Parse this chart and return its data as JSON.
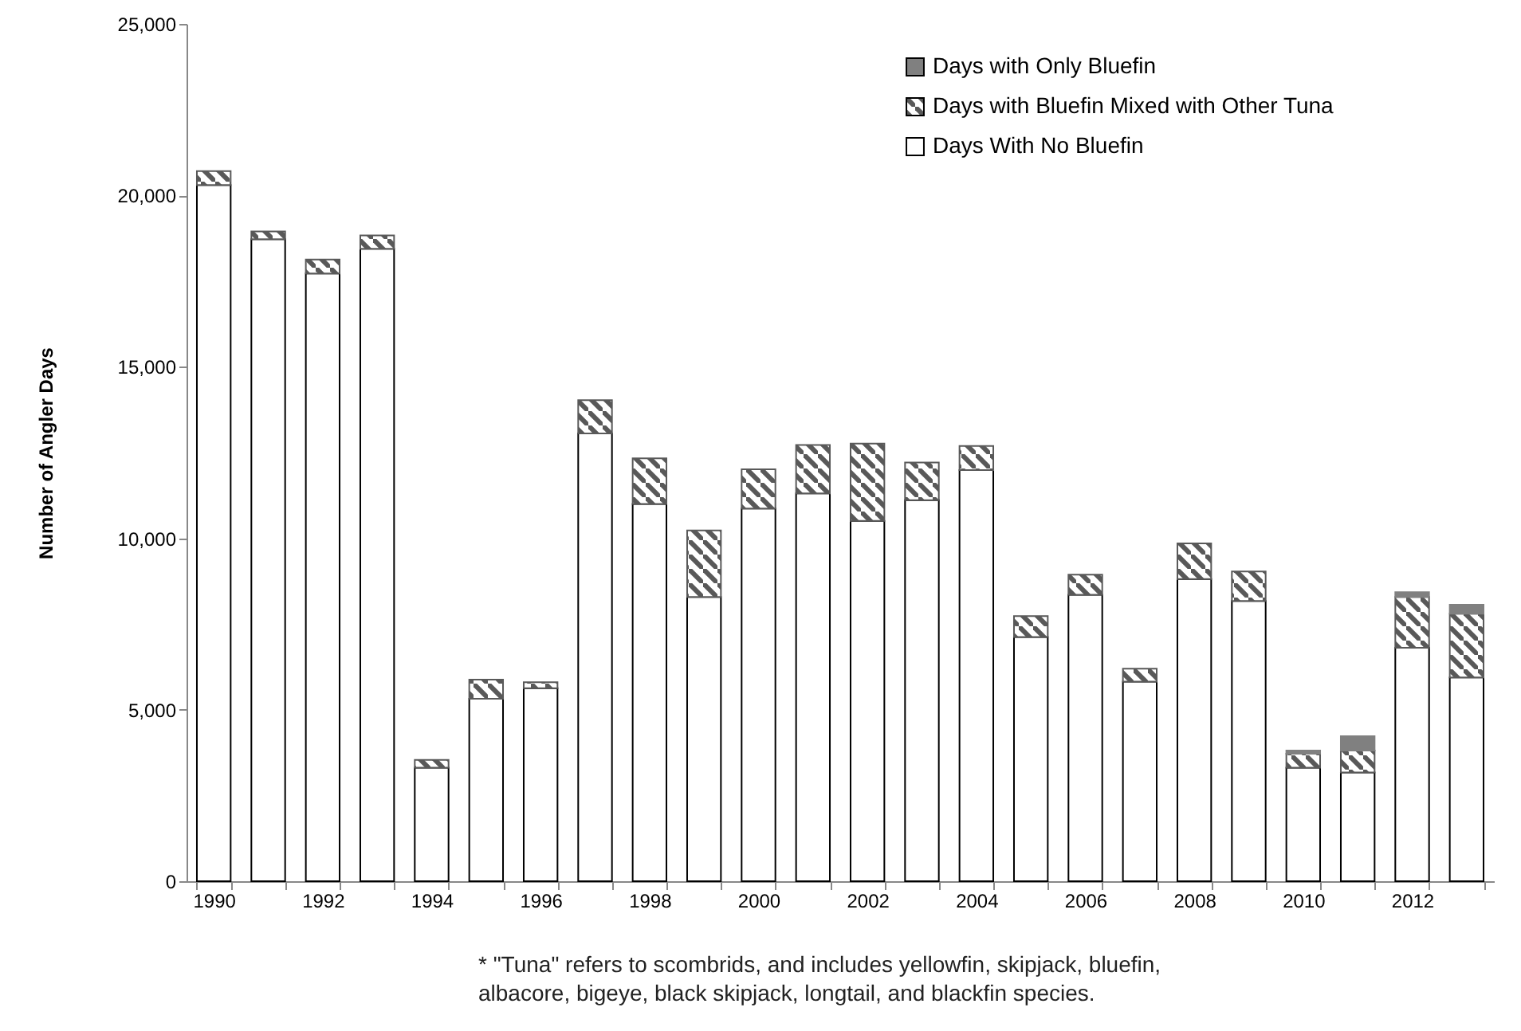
{
  "chart_data": {
    "type": "bar",
    "stacked": true,
    "categories": [
      "1990",
      null,
      "1992",
      null,
      "1994",
      null,
      "1996",
      null,
      "1998",
      null,
      "2000",
      null,
      "2002",
      null,
      "2004",
      null,
      "2006",
      null,
      "2008",
      null,
      "2010",
      null,
      "2012",
      null
    ],
    "series": [
      {
        "name": "Days With No Bluefin",
        "color": "#ffffff",
        "values": [
          20300,
          18720,
          17720,
          18440,
          3310,
          5320,
          5630,
          13060,
          11000,
          8290,
          10870,
          11310,
          10510,
          11110,
          11990,
          7120,
          8350,
          5820,
          8810,
          8170,
          3310,
          3170,
          6810,
          5940
        ]
      },
      {
        "name": "Days with Bluefin Mixed with Other Tuna",
        "color": "#595959",
        "values": [
          410,
          230,
          410,
          390,
          230,
          560,
          170,
          970,
          1330,
          1940,
          1140,
          1410,
          2250,
          1100,
          700,
          610,
          590,
          380,
          1040,
          860,
          410,
          640,
          1480,
          1860
        ]
      },
      {
        "name": "Days with Only Bluefin",
        "color": "#808080",
        "values": [
          null,
          null,
          null,
          null,
          null,
          null,
          null,
          null,
          null,
          null,
          null,
          null,
          null,
          null,
          null,
          null,
          null,
          null,
          null,
          null,
          90,
          420,
          140,
          260
        ]
      }
    ],
    "ylabel": "Number of Angler Days",
    "ylim": [
      0,
      25000
    ],
    "yticks": [
      0,
      {
        "value": 5000,
        "label": "5,000"
      },
      {
        "value": 10000,
        "label": "10,000"
      },
      {
        "value": 15000,
        "label": "15,000"
      },
      {
        "value": 20000,
        "label": "20,000"
      },
      {
        "value": 25000,
        "label": "25,000"
      }
    ],
    "grid": false,
    "legend": "top right",
    "annotations": [
      "* \"Tuna\" refers to scombrids, and includes yellowfin, skipjack, bluefin, albacore, bigeye, black skipjack, longtail, and blackfin species."
    ]
  }
}
